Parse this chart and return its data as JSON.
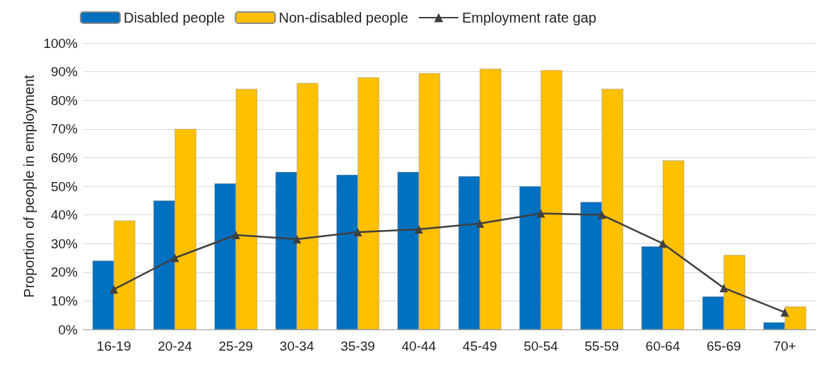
{
  "chart_data": {
    "type": "bar",
    "ylabel": "Proportion of people in employment",
    "categories": [
      "16-19",
      "20-24",
      "25-29",
      "30-34",
      "35-39",
      "40-44",
      "45-49",
      "50-54",
      "55-59",
      "60-64",
      "65-69",
      "70+"
    ],
    "series": [
      {
        "name": "Disabled people",
        "color": "#0070c0",
        "values": [
          24,
          45,
          51,
          55,
          54,
          55,
          53.5,
          50,
          44.5,
          29,
          11.5,
          2.5
        ]
      },
      {
        "name": "Non-disabled people",
        "color": "#ffc000",
        "values": [
          38,
          70,
          84,
          86,
          88,
          89.5,
          91,
          90.5,
          84,
          59,
          26,
          8
        ]
      },
      {
        "name": "Employment rate gap",
        "type": "line",
        "color": "#404040",
        "marker": "triangle",
        "values": [
          14,
          25,
          33,
          31.5,
          34,
          35,
          37,
          40.5,
          40,
          30,
          14.5,
          6
        ]
      }
    ],
    "ylim": [
      0,
      100
    ],
    "yticks": [
      {
        "value": 0,
        "label": "0%"
      },
      {
        "value": 10,
        "label": "10%"
      },
      {
        "value": 20,
        "label": "20%"
      },
      {
        "value": 30,
        "label": "30%"
      },
      {
        "value": 40,
        "label": "40%"
      },
      {
        "value": 50,
        "label": "50%"
      },
      {
        "value": 60,
        "label": "60%"
      },
      {
        "value": 70,
        "label": "70%"
      },
      {
        "value": 80,
        "label": "80%"
      },
      {
        "value": 90,
        "label": "90%"
      },
      {
        "value": 100,
        "label": "100%"
      }
    ],
    "grid": "y",
    "legend": "top left"
  }
}
